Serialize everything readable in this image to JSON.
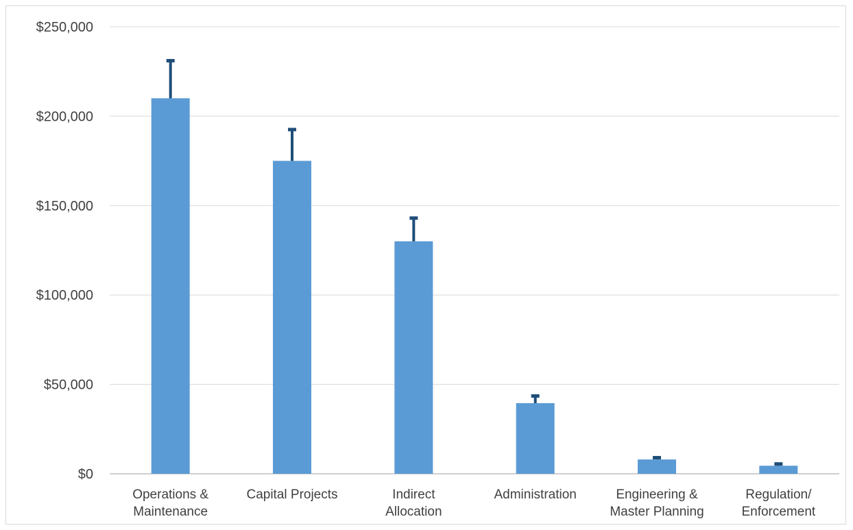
{
  "chart_data": {
    "type": "bar",
    "title": "",
    "xlabel": "",
    "ylabel": "",
    "categories": [
      [
        "Operations &",
        "Maintenance"
      ],
      [
        "Capital Projects"
      ],
      [
        "Indirect",
        "Allocation"
      ],
      [
        "Administration"
      ],
      [
        "Engineering &",
        "Master Planning"
      ],
      [
        "Regulation/",
        "Enforcement"
      ]
    ],
    "values": [
      210000,
      175000,
      130000,
      39500,
      8000,
      4500
    ],
    "error_upper": [
      231000,
      192500,
      143000,
      43500,
      9000,
      5500
    ],
    "ylim": [
      0,
      250000
    ],
    "yticks": [
      0,
      50000,
      100000,
      150000,
      200000,
      250000
    ],
    "ytick_labels": [
      "$0",
      "$50,000",
      "$100,000",
      "$150,000",
      "$200,000",
      "$250,000"
    ],
    "grid": true,
    "legend": "none",
    "colors": {
      "bar": "#5b9bd5",
      "error_bar": "#1f4e79",
      "grid": "#d9d9d9",
      "axis": "#bfbfbf",
      "text": "#404040"
    }
  }
}
